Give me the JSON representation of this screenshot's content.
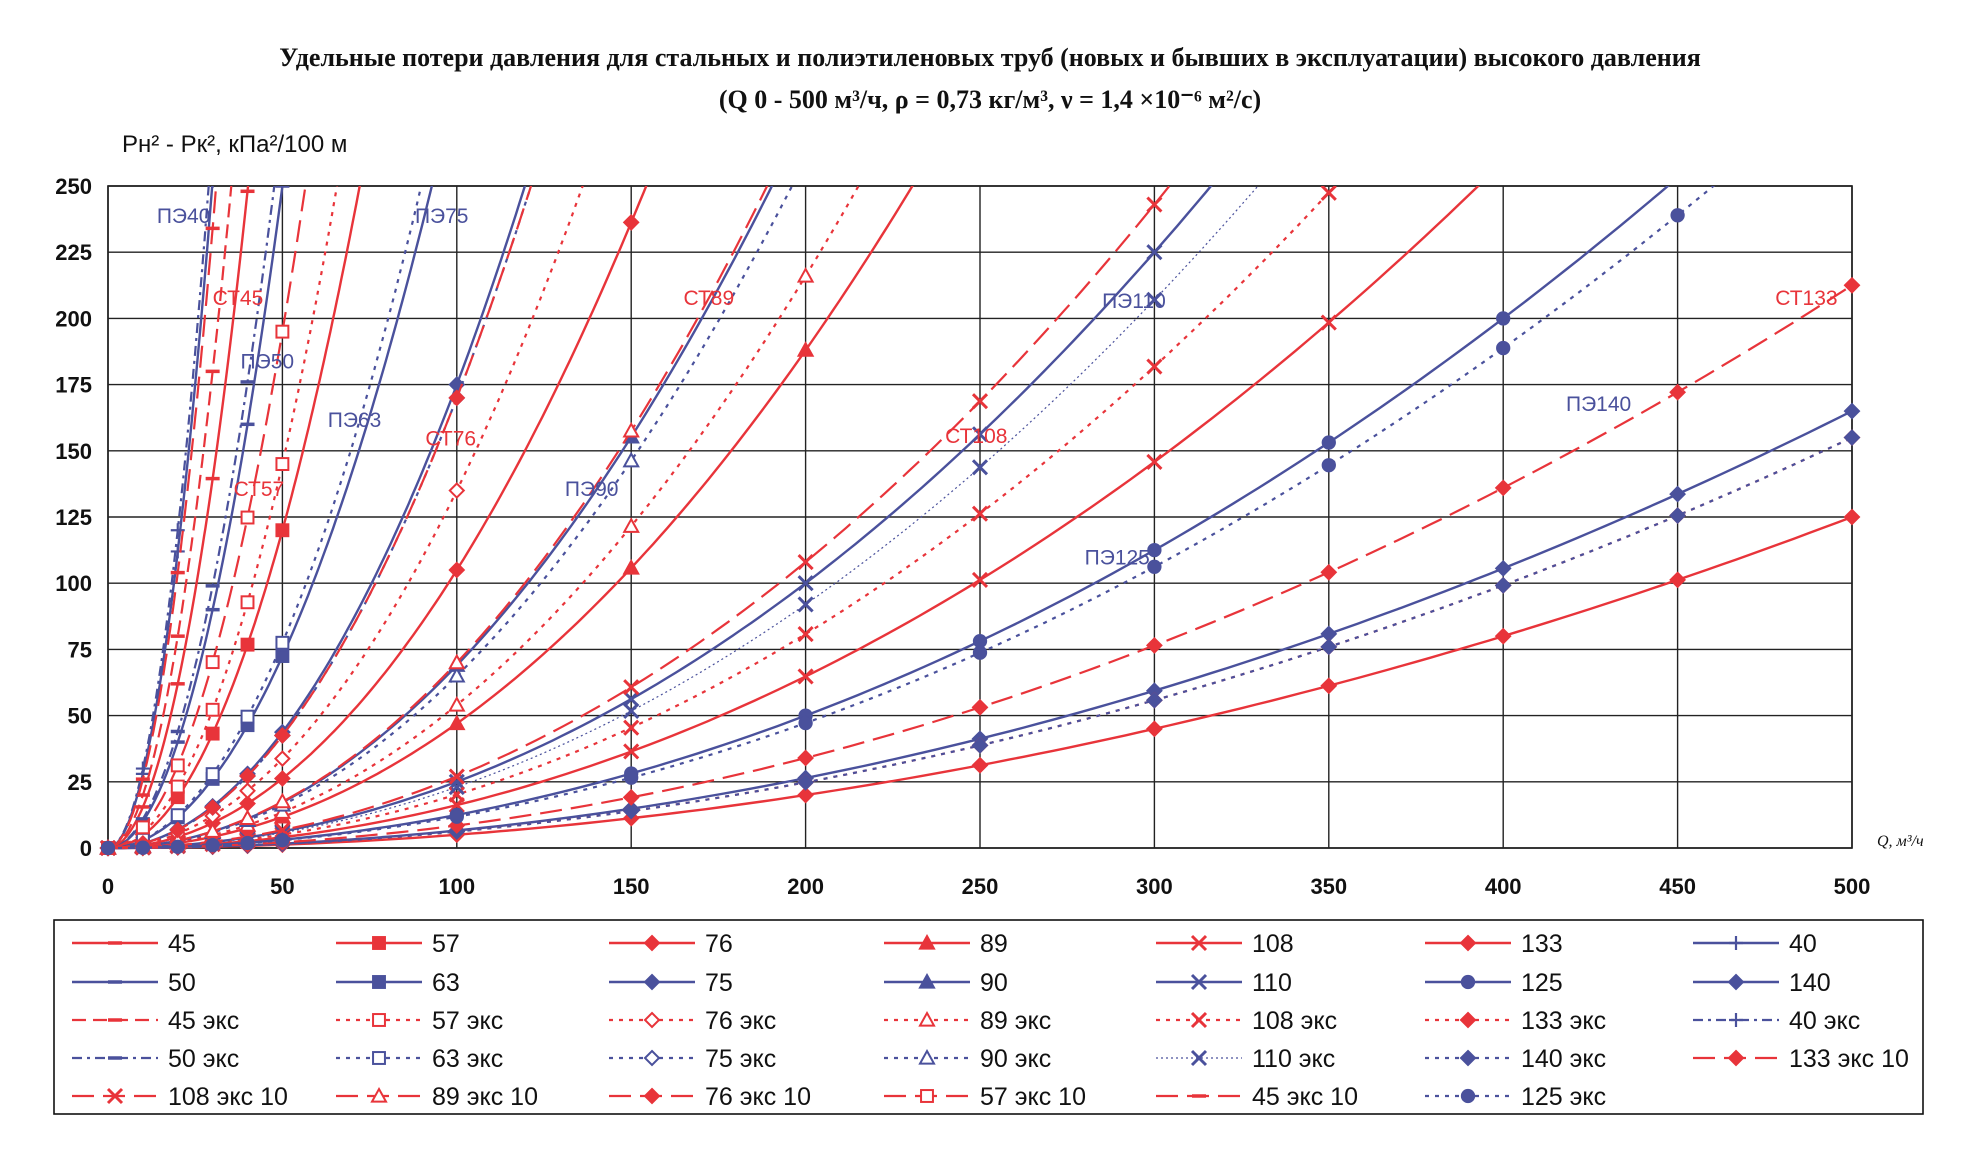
{
  "chart_data": {
    "type": "line",
    "title_line1": "Удельные потери давления для стальных и полиэтиленовых труб (новых и бывших в эксплуатации) высокого давления",
    "title_line2": "(Q 0 - 500 м³/ч, ρ = 0,73 кг/м³, ν = 1,4 ×10⁻⁶ м²/с)",
    "ylabel": "Pн² - Pк², кПа²/100 м",
    "xlabel": "Q, м³/ч",
    "xlim": [
      0,
      500
    ],
    "ylim": [
      0,
      250
    ],
    "x_ticks": [
      0,
      50,
      100,
      150,
      200,
      250,
      300,
      350,
      400,
      450,
      500
    ],
    "y_ticks": [
      0,
      25,
      50,
      75,
      100,
      125,
      150,
      175,
      200,
      225,
      250
    ],
    "x_values": [
      0,
      10,
      20,
      30,
      40,
      50,
      100,
      150,
      200,
      250,
      300,
      350,
      400,
      450,
      500
    ],
    "grid": true,
    "legend_position": "bottom",
    "colors": {
      "steel": "#e8343a",
      "pe": "#4a519c"
    },
    "series": [
      {
        "name": "45",
        "k": 0.155,
        "color": "steel",
        "dash": "solid",
        "marker": "dash"
      },
      {
        "name": "57",
        "k": 0.048,
        "color": "steel",
        "dash": "solid",
        "marker": "square"
      },
      {
        "name": "76",
        "k": 0.0105,
        "color": "steel",
        "dash": "solid",
        "marker": "diamond"
      },
      {
        "name": "89",
        "k": 0.0047,
        "color": "steel",
        "dash": "solid",
        "marker": "triangle"
      },
      {
        "name": "108",
        "k": 0.00162,
        "color": "steel",
        "dash": "solid",
        "marker": "x"
      },
      {
        "name": "133",
        "k": 0.0005,
        "color": "steel",
        "dash": "solid",
        "marker": "diamond"
      },
      {
        "name": "40",
        "k": 0.28,
        "color": "pe",
        "dash": "solid",
        "marker": "plus"
      },
      {
        "name": "50",
        "k": 0.1,
        "color": "pe",
        "dash": "solid",
        "marker": "dash"
      },
      {
        "name": "63",
        "k": 0.029,
        "color": "pe",
        "dash": "solid",
        "marker": "square"
      },
      {
        "name": "75",
        "k": 0.0175,
        "color": "pe",
        "dash": "solid",
        "marker": "diamond"
      },
      {
        "name": "90",
        "k": 0.0069,
        "color": "pe",
        "dash": "solid",
        "marker": "triangle"
      },
      {
        "name": "110",
        "k": 0.0025,
        "color": "pe",
        "dash": "solid",
        "marker": "x"
      },
      {
        "name": "125",
        "k": 0.00125,
        "color": "pe",
        "dash": "solid",
        "marker": "circle"
      },
      {
        "name": "140",
        "k": 0.00066,
        "color": "pe",
        "dash": "solid",
        "marker": "diamond"
      },
      {
        "name": "45 экс",
        "k": 0.2,
        "color": "steel",
        "dash": "dash",
        "marker": "dash"
      },
      {
        "name": "57 экс",
        "k": 0.058,
        "color": "steel",
        "dash": "dot",
        "marker": "square-open"
      },
      {
        "name": "76 экс",
        "k": 0.0135,
        "color": "steel",
        "dash": "dot",
        "marker": "diamond-open"
      },
      {
        "name": "89 экс",
        "k": 0.0054,
        "color": "steel",
        "dash": "dot",
        "marker": "triangle-open"
      },
      {
        "name": "108 экс",
        "k": 0.00202,
        "color": "steel",
        "dash": "dot",
        "marker": "x"
      },
      {
        "name": "133 экс",
        "k": 0.00062,
        "color": "steel",
        "dash": "dot",
        "marker": "diamond"
      },
      {
        "name": "40 экс",
        "k": 0.3,
        "color": "pe",
        "dash": "dashdot",
        "marker": "plus"
      },
      {
        "name": "50 экс",
        "k": 0.11,
        "color": "pe",
        "dash": "dashdot",
        "marker": "dash"
      },
      {
        "name": "63 экс",
        "k": 0.031,
        "color": "pe",
        "dash": "dot",
        "marker": "square-open"
      },
      {
        "name": "75 экс",
        "k": 0.017,
        "color": "pe",
        "dash": "dot",
        "marker": "diamond-open"
      },
      {
        "name": "90 экс",
        "k": 0.0065,
        "color": "pe",
        "dash": "dot",
        "marker": "triangle-open"
      },
      {
        "name": "110 экс",
        "k": 0.0023,
        "color": "pe",
        "dash": "thin",
        "marker": "x"
      },
      {
        "name": "140 экс",
        "k": 0.00062,
        "color": "pe",
        "dash": "dot",
        "marker": "diamond"
      },
      {
        "name": "133 экс 10",
        "k": 0.00085,
        "color": "steel",
        "dash": "longdash",
        "marker": "diamond"
      },
      {
        "name": "108 экс 10",
        "k": 0.0027,
        "color": "steel",
        "dash": "longdash",
        "marker": "x"
      },
      {
        "name": "89 экс 10",
        "k": 0.007,
        "color": "steel",
        "dash": "longdash",
        "marker": "triangle-open"
      },
      {
        "name": "76 экс 10",
        "k": 0.017,
        "color": "steel",
        "dash": "longdash",
        "marker": "diamond"
      },
      {
        "name": "57 экс 10",
        "k": 0.078,
        "color": "steel",
        "dash": "longdash",
        "marker": "square-open"
      },
      {
        "name": "45 экс 10",
        "k": 0.26,
        "color": "steel",
        "dash": "longdash",
        "marker": "dash"
      },
      {
        "name": "125 экс",
        "k": 0.00118,
        "color": "pe",
        "dash": "dot",
        "marker": "circle"
      }
    ],
    "annotations": [
      {
        "text": "ПЭ40",
        "x": 14,
        "y": 236,
        "color": "pe"
      },
      {
        "text": "СТ45",
        "x": 30,
        "y": 205,
        "color": "steel"
      },
      {
        "text": "ПЭ50",
        "x": 38,
        "y": 181,
        "color": "pe"
      },
      {
        "text": "ПЭ63",
        "x": 63,
        "y": 159,
        "color": "pe"
      },
      {
        "text": "СТ57",
        "x": 36,
        "y": 133,
        "color": "steel"
      },
      {
        "text": "ПЭ75",
        "x": 88,
        "y": 236,
        "color": "pe"
      },
      {
        "text": "СТ76",
        "x": 91,
        "y": 152,
        "color": "steel"
      },
      {
        "text": "ПЭ90",
        "x": 131,
        "y": 133,
        "color": "pe"
      },
      {
        "text": "СТ89",
        "x": 165,
        "y": 205,
        "color": "steel"
      },
      {
        "text": "СТ108",
        "x": 240,
        "y": 153,
        "color": "steel"
      },
      {
        "text": "ПЭ110",
        "x": 285,
        "y": 204,
        "color": "pe"
      },
      {
        "text": "ПЭ125",
        "x": 280,
        "y": 107,
        "color": "pe"
      },
      {
        "text": "ПЭ140",
        "x": 418,
        "y": 165,
        "color": "pe"
      },
      {
        "text": "СТ133",
        "x": 478,
        "y": 205,
        "color": "steel"
      }
    ]
  }
}
